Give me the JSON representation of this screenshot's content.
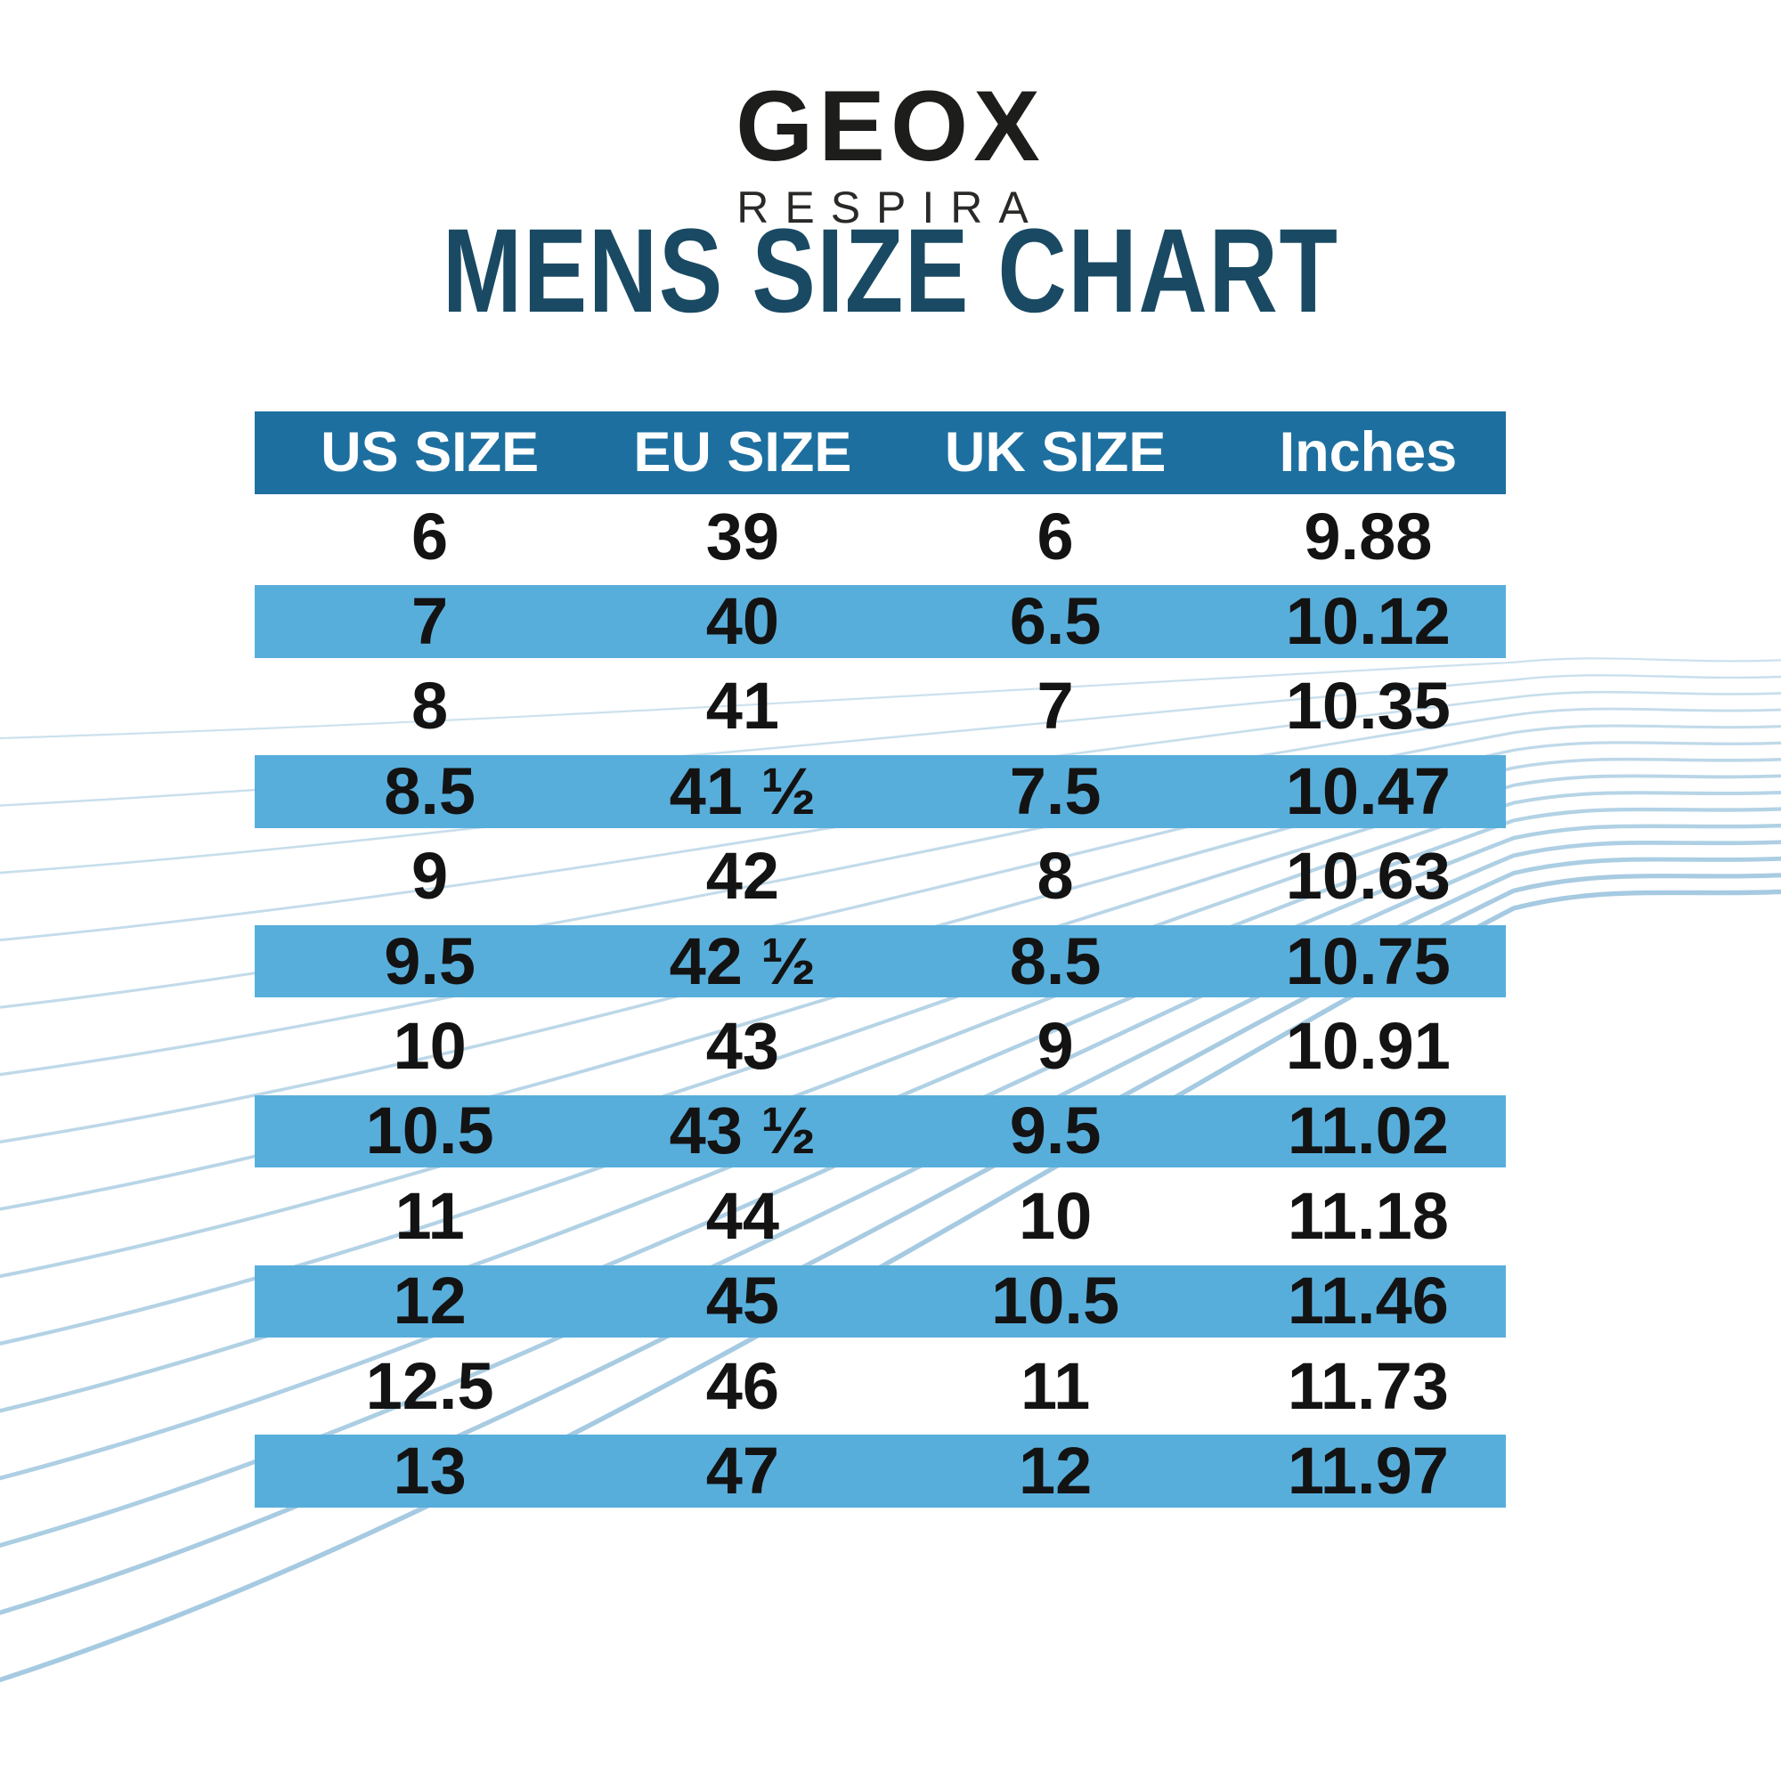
{
  "brand": {
    "name": "GEOX",
    "tagline": "RESPIRA"
  },
  "page": {
    "title": "MENS SIZE CHART"
  },
  "colors": {
    "background": "#ffffff",
    "header_bg": "#1d6f9f",
    "header_text": "#ffffff",
    "row_alt_bg": "#58aedb",
    "title_color": "#1a4a63",
    "logo_color": "#1d1d1b",
    "cell_text": "#131313",
    "wave_color": "#8fbdd9"
  },
  "chart_data": {
    "type": "table",
    "title": "MENS SIZE CHART",
    "columns": [
      "US SIZE",
      "EU SIZE",
      "UK SIZE",
      "Inches"
    ],
    "rows": [
      [
        "6",
        "39",
        "6",
        "9.88"
      ],
      [
        "7",
        "40",
        "6.5",
        "10.12"
      ],
      [
        "8",
        "41",
        "7",
        "10.35"
      ],
      [
        "8.5",
        "41 ½",
        "7.5",
        "10.47"
      ],
      [
        "9",
        "42",
        "8",
        "10.63"
      ],
      [
        "9.5",
        "42 ½",
        "8.5",
        "10.75"
      ],
      [
        "10",
        "43",
        "9",
        "10.91"
      ],
      [
        "10.5",
        "43 ½",
        "9.5",
        "11.02"
      ],
      [
        "11",
        "44",
        "10",
        "11.18"
      ],
      [
        "12",
        "45",
        "10.5",
        "11.46"
      ],
      [
        "12.5",
        "46",
        "11",
        "11.73"
      ],
      [
        "13",
        "47",
        "12",
        "11.97"
      ]
    ],
    "alt_row_indexes": [
      1,
      3,
      5,
      7,
      9,
      11
    ],
    "legend_position": "none",
    "grid": false
  }
}
